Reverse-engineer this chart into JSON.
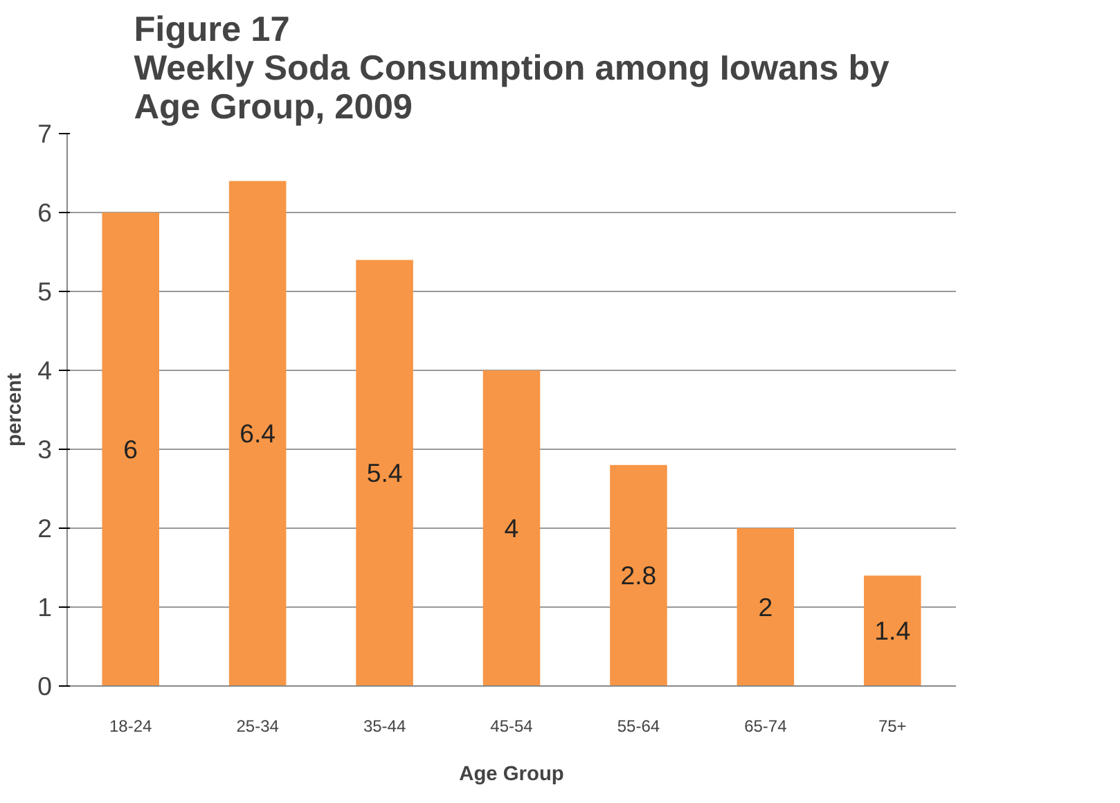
{
  "chart_data": {
    "type": "bar",
    "title": "Figure 17",
    "subtitle": "Weekly Soda Consumption among Iowans by Age Group, 2009",
    "xlabel": "Age Group",
    "ylabel": "percent",
    "categories": [
      "18-24",
      "25-34",
      "35-44",
      "45-54",
      "55-64",
      "65-74",
      "75+"
    ],
    "values": [
      6,
      6.4,
      5.4,
      4,
      2.8,
      2,
      1.4
    ],
    "color": "#f79646",
    "ylim": [
      0,
      7
    ],
    "yticks": [
      0,
      1,
      2,
      3,
      4,
      5,
      6,
      7
    ],
    "grid": "y",
    "data_labels": true
  }
}
